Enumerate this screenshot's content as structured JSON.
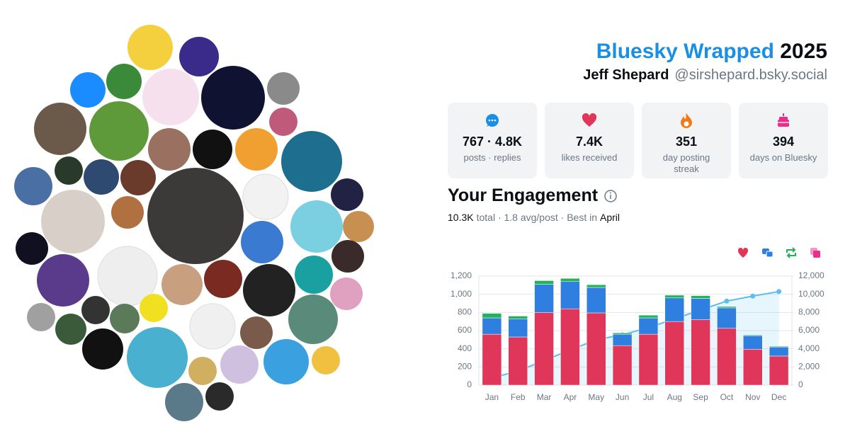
{
  "header": {
    "title_brand": "Bluesky Wrapped",
    "title_year": "2025",
    "display_name": "Jeff Shepard",
    "handle": "@sirshepard.bsky.social"
  },
  "stats": [
    {
      "value": "767 · 4.8K",
      "label": "posts · replies"
    },
    {
      "value": "7.4K",
      "label": "likes received"
    },
    {
      "value": "351",
      "label": "day posting streak"
    },
    {
      "value": "394",
      "label": "days on Bluesky"
    }
  ],
  "engagement": {
    "title": "Your Engagement",
    "total": "10.3K",
    "summary": "total · 1.8 avg/post · Best in",
    "best_month": "April"
  },
  "chart_data": {
    "type": "bar",
    "categories": [
      "Jan",
      "Feb",
      "Mar",
      "Apr",
      "May",
      "Jun",
      "Jul",
      "Aug",
      "Sep",
      "Oct",
      "Nov",
      "Dec"
    ],
    "stacked": true,
    "series": [
      {
        "color": "#e0365a",
        "values": [
          560,
          530,
          800,
          840,
          795,
          435,
          560,
          700,
          720,
          625,
          395,
          320
        ]
      },
      {
        "color": "#2f7fe0",
        "values": [
          180,
          200,
          310,
          300,
          280,
          125,
          180,
          260,
          235,
          225,
          150,
          100
        ]
      },
      {
        "color": "#22b35a",
        "values": [
          50,
          30,
          40,
          35,
          30,
          15,
          30,
          30,
          30,
          15,
          8,
          8
        ]
      },
      {
        "color": "#e8308a",
        "values": [
          0,
          0,
          0,
          0,
          0,
          0,
          0,
          0,
          0,
          0,
          0,
          0
        ]
      },
      {
        "type": "line",
        "axis": "y2",
        "color": "#5bbdf0",
        "values": [
          790,
          1550,
          2700,
          3870,
          4980,
          5550,
          6320,
          7300,
          8270,
          9250,
          9800,
          10300
        ]
      }
    ],
    "ylim": [
      0,
      1200
    ],
    "yticks": [
      0,
      200,
      400,
      600,
      800,
      {
        "value": 1000,
        "label": "1,000"
      },
      {
        "value": 1200,
        "label": "1,200"
      }
    ],
    "y2lim": [
      0,
      12000
    ],
    "y2ticks": [
      0,
      {
        "value": 2000,
        "label": "2,000"
      },
      {
        "value": 4000,
        "label": "4,000"
      },
      {
        "value": 6000,
        "label": "6,000"
      },
      {
        "value": 8000,
        "label": "8,000"
      },
      {
        "value": 10000,
        "label": "10,000"
      },
      {
        "value": 12000,
        "label": "12,000"
      }
    ],
    "grid": true
  }
}
